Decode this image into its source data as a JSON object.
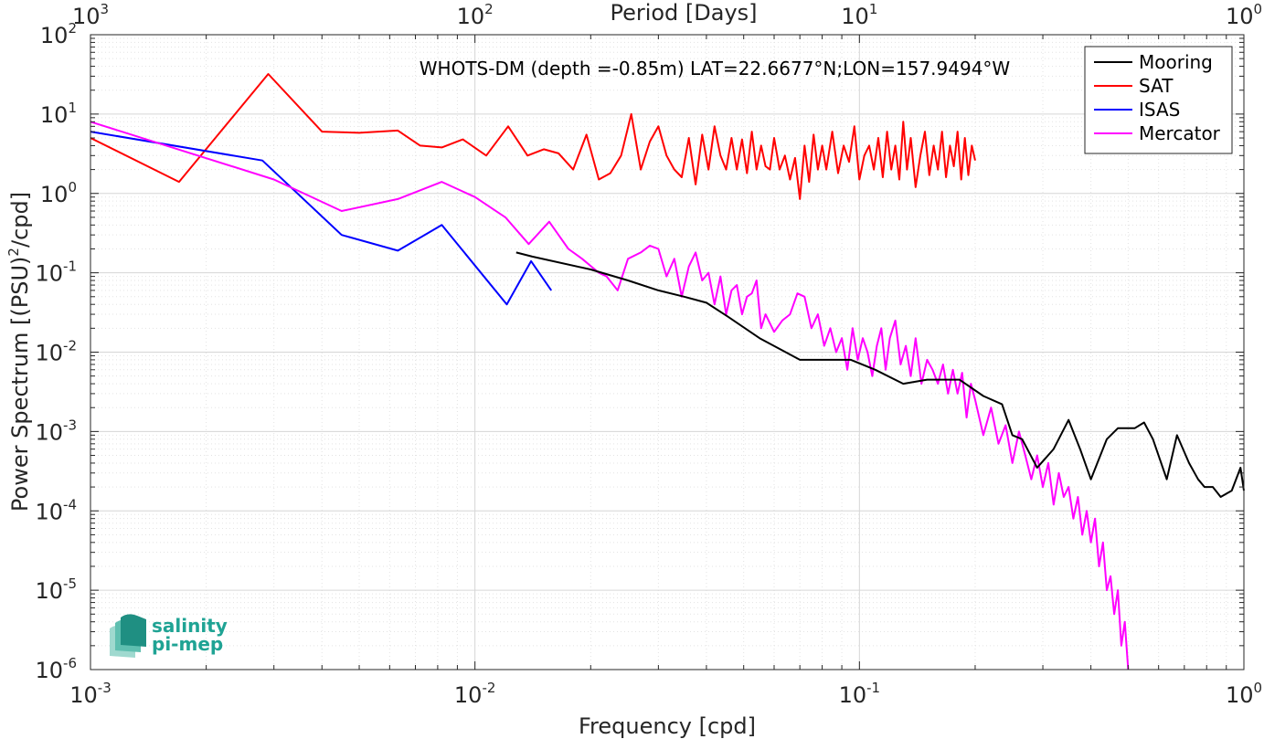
{
  "chart_data": {
    "type": "line",
    "title": "WHOTS-DM (depth =-0.85m) LAT=22.6677°N;LON=157.9494°W",
    "xlabel": "Frequency [cpd]",
    "ylabel_main": "Power Spectrum [(PSU)",
    "ylabel_sup": "2",
    "ylabel_tail": "/cpd]",
    "top_xlabel": "Period [Days]",
    "x_scale": "log",
    "y_scale": "log",
    "xlim": [
      0.001,
      1
    ],
    "ylim": [
      1e-06,
      100
    ],
    "grid": true,
    "legend_position": "top-right",
    "x_ticks": [
      {
        "value": 0.001,
        "base": "10",
        "exp": "-3"
      },
      {
        "value": 0.01,
        "base": "10",
        "exp": "-2"
      },
      {
        "value": 0.1,
        "base": "10",
        "exp": "-1"
      },
      {
        "value": 1,
        "base": "10",
        "exp": "0"
      }
    ],
    "top_ticks": [
      {
        "value": 0.001,
        "base": "10",
        "exp": "3"
      },
      {
        "value": 0.01,
        "base": "10",
        "exp": "2"
      },
      {
        "value": 0.1,
        "base": "10",
        "exp": "1"
      },
      {
        "value": 1,
        "base": "10",
        "exp": "0"
      }
    ],
    "y_ticks": [
      {
        "value": 100,
        "base": "10",
        "exp": "2"
      },
      {
        "value": 10,
        "base": "10",
        "exp": "1"
      },
      {
        "value": 1,
        "base": "10",
        "exp": "0"
      },
      {
        "value": 0.1,
        "base": "10",
        "exp": "-1"
      },
      {
        "value": 0.01,
        "base": "10",
        "exp": "-2"
      },
      {
        "value": 0.001,
        "base": "10",
        "exp": "-3"
      },
      {
        "value": 0.0001,
        "base": "10",
        "exp": "-4"
      },
      {
        "value": 1e-05,
        "base": "10",
        "exp": "-5"
      },
      {
        "value": 1e-06,
        "base": "10",
        "exp": "-6"
      }
    ],
    "series": [
      {
        "name": "Mooring",
        "color": "#000000",
        "x": [
          0.0128,
          0.0141,
          0.02,
          0.025,
          0.03,
          0.035,
          0.04,
          0.0455,
          0.055,
          0.07,
          0.08,
          0.095,
          0.11,
          0.13,
          0.15,
          0.17,
          0.182,
          0.21,
          0.235,
          0.25,
          0.265,
          0.29,
          0.32,
          0.35,
          0.375,
          0.4,
          0.44,
          0.47,
          0.52,
          0.55,
          0.58,
          0.63,
          0.67,
          0.72,
          0.76,
          0.79,
          0.83,
          0.87,
          0.93,
          0.98,
          1.0
        ],
        "y": [
          0.18,
          0.16,
          0.11,
          0.08,
          0.06,
          0.05,
          0.042,
          0.028,
          0.015,
          0.008,
          0.008,
          0.008,
          0.006,
          0.004,
          0.0045,
          0.0045,
          0.0045,
          0.0028,
          0.0022,
          0.0009,
          0.0008,
          0.00035,
          0.0006,
          0.0014,
          0.0006,
          0.00025,
          0.0008,
          0.0011,
          0.0011,
          0.0013,
          0.0008,
          0.00025,
          0.0009,
          0.0004,
          0.00025,
          0.0002,
          0.0002,
          0.00015,
          0.00018,
          0.00035,
          0.00018
        ]
      },
      {
        "name": "SAT",
        "color": "#ff0000",
        "x": [
          0.001,
          0.0017,
          0.0029,
          0.004,
          0.005,
          0.0063,
          0.0072,
          0.0082,
          0.0093,
          0.0107,
          0.0122,
          0.0137,
          0.0151,
          0.0165,
          0.018,
          0.0195,
          0.021,
          0.0225,
          0.024,
          0.0255,
          0.027,
          0.0285,
          0.03,
          0.0315,
          0.033,
          0.0345,
          0.036,
          0.0375,
          0.039,
          0.0405,
          0.042,
          0.0435,
          0.045,
          0.0465,
          0.048,
          0.0495,
          0.051,
          0.0525,
          0.054,
          0.0555,
          0.057,
          0.0585,
          0.06,
          0.062,
          0.064,
          0.066,
          0.068,
          0.07,
          0.072,
          0.074,
          0.076,
          0.078,
          0.08,
          0.082,
          0.085,
          0.088,
          0.091,
          0.094,
          0.097,
          0.1,
          0.103,
          0.106,
          0.109,
          0.112,
          0.115,
          0.118,
          0.121,
          0.124,
          0.127,
          0.13,
          0.133,
          0.136,
          0.14,
          0.144,
          0.148,
          0.152,
          0.156,
          0.16,
          0.164,
          0.168,
          0.172,
          0.176,
          0.18,
          0.184,
          0.188,
          0.192,
          0.196,
          0.2
        ],
        "y": [
          5.0,
          1.4,
          32.0,
          6.0,
          5.8,
          6.2,
          4.0,
          3.8,
          4.8,
          3.0,
          7.0,
          3.0,
          3.6,
          3.2,
          2.0,
          5.5,
          1.5,
          1.8,
          3.0,
          10.0,
          2.0,
          4.5,
          7.0,
          3.0,
          2.0,
          1.6,
          5.0,
          1.3,
          5.5,
          2.0,
          7.0,
          3.0,
          2.0,
          5.0,
          2.0,
          4.8,
          1.8,
          6.0,
          2.0,
          4.0,
          2.2,
          2.0,
          5.0,
          2.0,
          3.0,
          1.5,
          2.8,
          0.85,
          4.0,
          1.4,
          5.5,
          2.0,
          4.0,
          2.0,
          6.0,
          1.8,
          4.0,
          2.5,
          7.0,
          1.5,
          3.0,
          4.0,
          2.0,
          5.0,
          1.6,
          6.0,
          2.0,
          4.0,
          1.5,
          8.0,
          2.0,
          5.0,
          1.2,
          3.0,
          6.0,
          1.7,
          4.0,
          2.0,
          6.0,
          1.6,
          4.0,
          2.2,
          6.0,
          1.5,
          5.0,
          1.7,
          4.0,
          2.6
        ]
      },
      {
        "name": "ISAS",
        "color": "#0000ff",
        "x": [
          0.001,
          0.0028,
          0.0045,
          0.0063,
          0.0082,
          0.0121,
          0.014,
          0.0158
        ],
        "y": [
          6.0,
          2.6,
          0.3,
          0.19,
          0.4,
          0.04,
          0.14,
          0.06
        ]
      },
      {
        "name": "Mercator",
        "color": "#ff00ff",
        "x": [
          0.001,
          0.003,
          0.0045,
          0.0063,
          0.0082,
          0.01,
          0.012,
          0.0138,
          0.0156,
          0.0175,
          0.019,
          0.021,
          0.022,
          0.0235,
          0.025,
          0.027,
          0.0285,
          0.03,
          0.0315,
          0.033,
          0.0345,
          0.036,
          0.0375,
          0.039,
          0.0405,
          0.042,
          0.0435,
          0.045,
          0.0465,
          0.048,
          0.0495,
          0.051,
          0.0525,
          0.054,
          0.0555,
          0.057,
          0.06,
          0.063,
          0.066,
          0.069,
          0.072,
          0.075,
          0.078,
          0.081,
          0.084,
          0.087,
          0.09,
          0.093,
          0.096,
          0.099,
          0.102,
          0.105,
          0.108,
          0.111,
          0.114,
          0.117,
          0.12,
          0.124,
          0.128,
          0.132,
          0.136,
          0.14,
          0.145,
          0.15,
          0.155,
          0.16,
          0.165,
          0.17,
          0.175,
          0.18,
          0.185,
          0.19,
          0.195,
          0.2,
          0.21,
          0.22,
          0.23,
          0.24,
          0.25,
          0.26,
          0.27,
          0.28,
          0.29,
          0.3,
          0.31,
          0.32,
          0.33,
          0.34,
          0.35,
          0.36,
          0.37,
          0.38,
          0.39,
          0.4,
          0.41,
          0.42,
          0.43,
          0.44,
          0.45,
          0.46,
          0.47,
          0.48,
          0.49,
          0.5
        ],
        "y": [
          8.0,
          1.5,
          0.6,
          0.85,
          1.4,
          0.9,
          0.5,
          0.23,
          0.44,
          0.2,
          0.15,
          0.1,
          0.09,
          0.06,
          0.15,
          0.18,
          0.22,
          0.2,
          0.09,
          0.15,
          0.05,
          0.12,
          0.18,
          0.08,
          0.1,
          0.04,
          0.09,
          0.03,
          0.06,
          0.07,
          0.03,
          0.05,
          0.055,
          0.08,
          0.02,
          0.03,
          0.018,
          0.025,
          0.03,
          0.055,
          0.05,
          0.02,
          0.03,
          0.012,
          0.02,
          0.01,
          0.015,
          0.006,
          0.02,
          0.008,
          0.015,
          0.01,
          0.005,
          0.012,
          0.02,
          0.006,
          0.015,
          0.025,
          0.007,
          0.012,
          0.005,
          0.015,
          0.004,
          0.008,
          0.006,
          0.004,
          0.007,
          0.003,
          0.006,
          0.003,
          0.0055,
          0.0015,
          0.004,
          0.0025,
          0.0009,
          0.002,
          0.0007,
          0.0012,
          0.0004,
          0.001,
          0.0005,
          0.00025,
          0.0005,
          0.0002,
          0.0004,
          0.00012,
          0.0003,
          0.00015,
          0.0002,
          8e-05,
          0.00015,
          5e-05,
          0.0001,
          4e-05,
          8e-05,
          2e-05,
          4e-05,
          1e-05,
          1.5e-05,
          5e-06,
          1e-05,
          2e-06,
          4e-06,
          1e-06
        ]
      }
    ]
  },
  "logo": {
    "line1": "salinity",
    "line2": "pi-mep"
  }
}
